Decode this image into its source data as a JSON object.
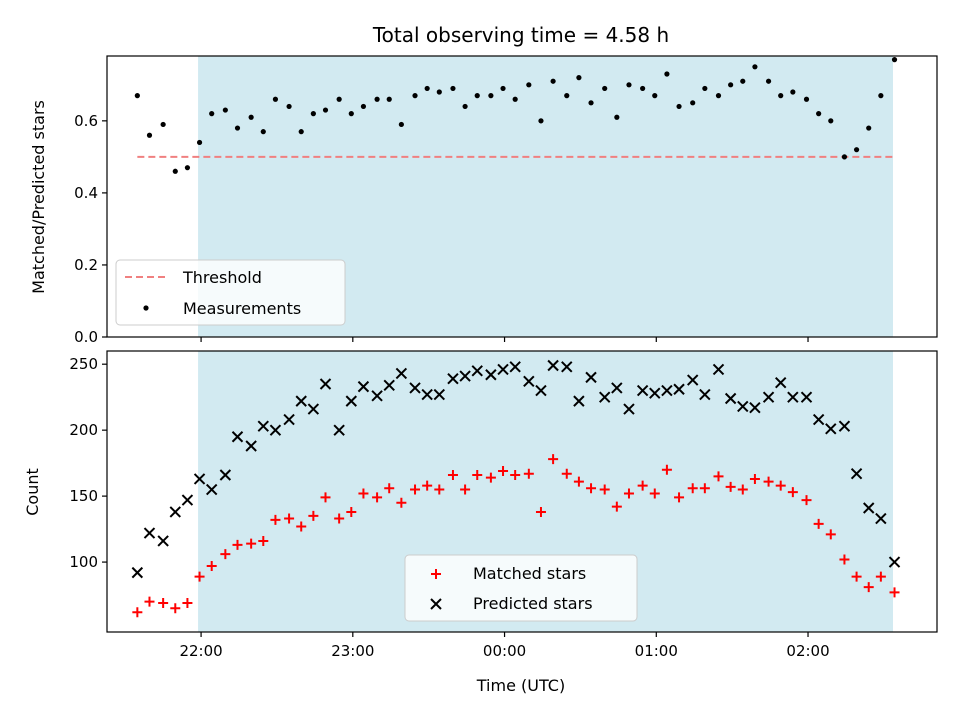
{
  "chart_data": [
    {
      "type": "scatter",
      "title": "Total observing time = 4.58 h",
      "xlabel": "",
      "ylabel": "Matched/Predicted stars",
      "xlim_hours": [
        21.38,
        26.85
      ],
      "ylim": [
        0,
        0.78
      ],
      "yticks": [
        0.0,
        0.2,
        0.4,
        0.6
      ],
      "ytick_labels": [
        "0.0",
        "0.2",
        "0.4",
        "0.6"
      ],
      "shaded_region_hours": [
        21.98,
        26.56
      ],
      "shade_color": "#add8e6",
      "threshold": {
        "value": 0.5,
        "x_hours": [
          21.58,
          26.56
        ],
        "color": "#f08080",
        "style": "dashed"
      },
      "legend": {
        "placement": "lower-left",
        "entries": [
          "Threshold",
          "Measurements"
        ]
      },
      "series": [
        {
          "name": "Measurements",
          "marker": "dot",
          "color": "#000000",
          "x_hours": [
            21.58,
            21.66,
            21.75,
            21.83,
            21.91,
            21.99,
            22.07,
            22.16,
            22.24,
            22.33,
            22.41,
            22.49,
            22.58,
            22.66,
            22.74,
            22.82,
            22.91,
            22.99,
            23.07,
            23.16,
            23.24,
            23.32,
            23.41,
            23.49,
            23.57,
            23.66,
            23.74,
            23.82,
            23.91,
            23.99,
            24.07,
            24.16,
            24.24,
            24.32,
            24.41,
            24.49,
            24.57,
            24.66,
            24.74,
            24.82,
            24.91,
            24.99,
            25.07,
            25.15,
            25.24,
            25.32,
            25.41,
            25.49,
            25.57,
            25.65,
            25.74,
            25.82,
            25.9,
            25.99,
            26.07,
            26.15,
            26.24,
            26.32,
            26.4,
            26.48,
            26.57
          ],
          "values": [
            0.67,
            0.56,
            0.59,
            0.46,
            0.47,
            0.54,
            0.62,
            0.63,
            0.58,
            0.61,
            0.57,
            0.66,
            0.64,
            0.57,
            0.62,
            0.63,
            0.66,
            0.62,
            0.64,
            0.66,
            0.66,
            0.59,
            0.67,
            0.69,
            0.68,
            0.69,
            0.64,
            0.67,
            0.67,
            0.69,
            0.66,
            0.7,
            0.6,
            0.71,
            0.67,
            0.72,
            0.65,
            0.69,
            0.61,
            0.7,
            0.69,
            0.67,
            0.73,
            0.64,
            0.65,
            0.69,
            0.67,
            0.7,
            0.71,
            0.75,
            0.71,
            0.67,
            0.68,
            0.66,
            0.62,
            0.6,
            0.5,
            0.52,
            0.58,
            0.67,
            0.77
          ]
        }
      ]
    },
    {
      "type": "scatter",
      "title": "",
      "xlabel": "Time (UTC)",
      "ylabel": "Count",
      "xlim_hours": [
        21.38,
        26.85
      ],
      "ylim": [
        47,
        260
      ],
      "yticks": [
        100,
        150,
        200,
        250
      ],
      "ytick_labels": [
        "100",
        "150",
        "200",
        "250"
      ],
      "xticks_hours": [
        22,
        23,
        24,
        25,
        26
      ],
      "xtick_labels": [
        "22:00",
        "23:00",
        "00:00",
        "01:00",
        "02:00"
      ],
      "shaded_region_hours": [
        21.98,
        26.56
      ],
      "shade_color": "#add8e6",
      "legend": {
        "placement": "lower-center",
        "entries": [
          "Matched stars",
          "Predicted stars"
        ]
      },
      "series": [
        {
          "name": "Matched stars",
          "marker": "plus",
          "color": "#ff0000",
          "x_hours": [
            21.58,
            21.66,
            21.75,
            21.83,
            21.91,
            21.99,
            22.07,
            22.16,
            22.24,
            22.33,
            22.41,
            22.49,
            22.58,
            22.66,
            22.74,
            22.82,
            22.91,
            22.99,
            23.07,
            23.16,
            23.24,
            23.32,
            23.41,
            23.49,
            23.57,
            23.66,
            23.74,
            23.82,
            23.91,
            23.99,
            24.07,
            24.16,
            24.24,
            24.32,
            24.41,
            24.49,
            24.57,
            24.66,
            24.74,
            24.82,
            24.91,
            24.99,
            25.07,
            25.15,
            25.24,
            25.32,
            25.41,
            25.49,
            25.57,
            25.65,
            25.74,
            25.82,
            25.9,
            25.99,
            26.07,
            26.15,
            26.24,
            26.32,
            26.4,
            26.48,
            26.57
          ],
          "values": [
            62,
            70,
            69,
            65,
            69,
            89,
            97,
            106,
            113,
            114,
            116,
            132,
            133,
            127,
            135,
            149,
            133,
            138,
            152,
            149,
            156,
            145,
            155,
            158,
            155,
            166,
            155,
            166,
            164,
            169,
            166,
            167,
            138,
            178,
            167,
            161,
            156,
            155,
            142,
            152,
            158,
            152,
            170,
            149,
            156,
            156,
            165,
            157,
            155,
            163,
            161,
            158,
            153,
            147,
            129,
            121,
            102,
            89,
            81,
            89,
            77
          ]
        },
        {
          "name": "Predicted stars",
          "marker": "x",
          "color": "#000000",
          "x_hours": [
            21.58,
            21.66,
            21.75,
            21.83,
            21.91,
            21.99,
            22.07,
            22.16,
            22.24,
            22.33,
            22.41,
            22.49,
            22.58,
            22.66,
            22.74,
            22.82,
            22.91,
            22.99,
            23.07,
            23.16,
            23.24,
            23.32,
            23.41,
            23.49,
            23.57,
            23.66,
            23.74,
            23.82,
            23.91,
            23.99,
            24.07,
            24.16,
            24.24,
            24.32,
            24.41,
            24.49,
            24.57,
            24.66,
            24.74,
            24.82,
            24.91,
            24.99,
            25.07,
            25.15,
            25.24,
            25.32,
            25.41,
            25.49,
            25.57,
            25.65,
            25.74,
            25.82,
            25.9,
            25.99,
            26.07,
            26.15,
            26.24,
            26.32,
            26.4,
            26.48,
            26.57
          ],
          "values": [
            92,
            122,
            116,
            138,
            147,
            163,
            155,
            166,
            195,
            188,
            203,
            200,
            208,
            222,
            216,
            235,
            200,
            222,
            233,
            226,
            234,
            243,
            232,
            227,
            227,
            239,
            241,
            245,
            242,
            246,
            248,
            237,
            230,
            249,
            248,
            222,
            240,
            225,
            232,
            216,
            230,
            228,
            230,
            231,
            238,
            227,
            246,
            224,
            218,
            217,
            225,
            236,
            225,
            225,
            208,
            201,
            203,
            167,
            141,
            133,
            100
          ]
        }
      ]
    }
  ]
}
